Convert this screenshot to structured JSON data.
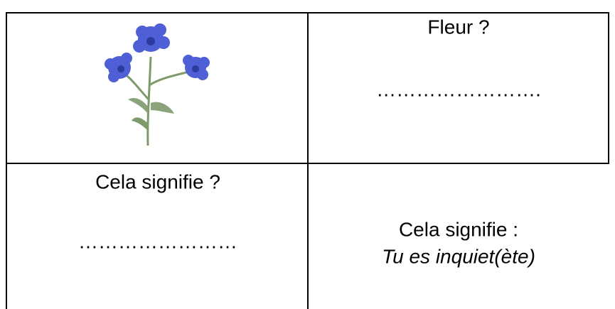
{
  "table": {
    "rows": [
      {
        "right": [
          "Fleur ?",
          "……………………."
        ]
      },
      {
        "left": [
          "Cela signifie ?",
          "……………………"
        ],
        "right": [
          "Cela signifie :",
          "Tu es inquiet(ète)"
        ]
      }
    ]
  }
}
